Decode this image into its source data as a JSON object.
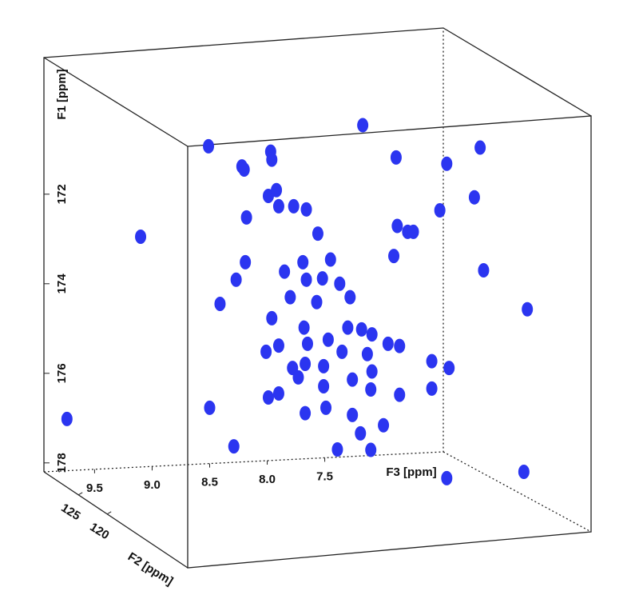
{
  "chart_data": {
    "type": "scatter3d",
    "x_label": "F3 [ppm]",
    "y_label": "F1 [ppm]",
    "z_label": "F2 [ppm]",
    "xlim": [
      9.94,
      6.47
    ],
    "ylim": [
      168.95,
      178.2
    ],
    "zlim": [
      131,
      106
    ],
    "xticks": [
      9.5,
      {
        "value": 9,
        "label": "9.0"
      },
      8.5,
      {
        "value": 8,
        "label": "8.0"
      },
      7.5
    ],
    "yticks": [
      172,
      174,
      176,
      178
    ],
    "zticks": [
      125,
      120
    ],
    "color": "#2b35f0",
    "x": [
      8.51,
      7.97,
      7.96,
      7.17,
      6.88,
      6.44,
      6.15,
      8.22,
      7.99,
      7.92,
      7.9,
      7.77,
      7.66,
      8.18,
      9.1,
      6.87,
      6.78,
      6.73,
      6.5,
      6.2,
      7.56,
      6.9,
      8.19,
      8.27,
      7.69,
      7.45,
      7.85,
      7.8,
      7.66,
      7.52,
      7.37,
      7.28,
      8.41,
      7.96,
      7.57,
      6.12,
      5.74,
      7.68,
      7.47,
      7.3,
      7.18,
      7.09,
      6.95,
      6.85,
      7.9,
      8.01,
      7.65,
      7.35,
      7.13,
      7.78,
      7.67,
      7.51,
      7.09,
      6.57,
      6.42,
      7.73,
      7.9,
      7.99,
      7.51,
      7.26,
      7.1,
      7.49,
      6.85,
      6.57,
      7.67,
      7.26,
      8.5,
      6.99,
      7.19,
      7.39,
      7.1,
      8.29,
      5.77,
      6.44,
      9.74,
      8.2
    ],
    "y": [
      170.93,
      171.05,
      171.23,
      170.46,
      171.18,
      171.32,
      170.96,
      171.38,
      172.04,
      171.91,
      172.27,
      172.27,
      172.34,
      172.52,
      172.95,
      172.71,
      172.84,
      172.84,
      172.36,
      172.07,
      172.88,
      173.38,
      173.52,
      173.91,
      173.52,
      173.46,
      173.73,
      174.3,
      173.91,
      173.88,
      174.0,
      174.3,
      174.45,
      174.77,
      174.41,
      173.7,
      174.57,
      174.98,
      175.25,
      174.98,
      175.02,
      175.13,
      175.34,
      175.39,
      175.38,
      175.52,
      175.34,
      175.52,
      175.57,
      175.88,
      175.79,
      175.84,
      175.96,
      175.73,
      175.88,
      176.09,
      176.45,
      176.54,
      176.29,
      176.14,
      176.36,
      176.77,
      176.48,
      176.34,
      176.89,
      176.93,
      176.77,
      177.16,
      177.34,
      177.7,
      177.71,
      177.63,
      178.2,
      178.34,
      177.02,
      171.45
    ]
  }
}
